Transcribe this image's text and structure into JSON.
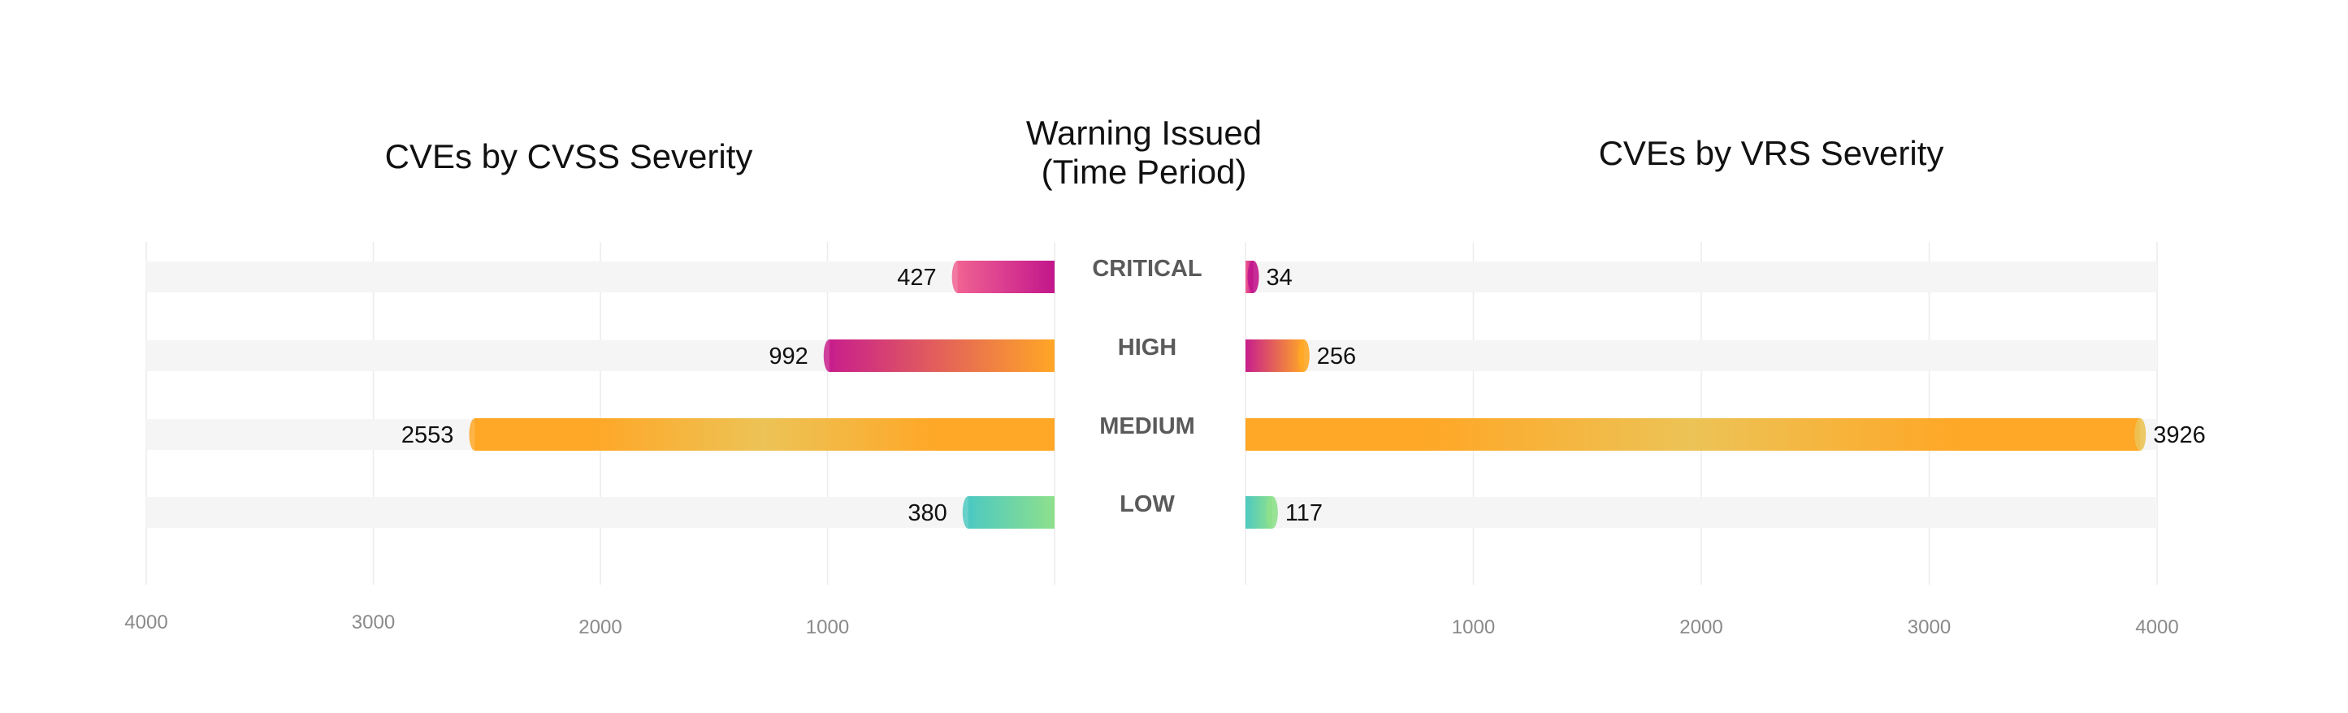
{
  "chart_data": {
    "type": "bar",
    "orientation": "horizontal-butterfly",
    "categories": [
      "CRITICAL",
      "HIGH",
      "MEDIUM",
      "LOW"
    ],
    "center_title": [
      "Warning Issued",
      "(Time Period)"
    ],
    "left": {
      "title": "CVEs by CVSS Severity",
      "values": [
        427,
        992,
        2553,
        380
      ],
      "xlim": [
        0,
        4000
      ],
      "ticks": [
        {
          "value": 1000,
          "label": "1000"
        },
        {
          "value": 2000,
          "label": "2000"
        },
        {
          "value": 3000,
          "label": "3000"
        },
        {
          "value": 4000,
          "label": "4000"
        }
      ]
    },
    "right": {
      "title": "CVEs by VRS Severity",
      "values": [
        34,
        256,
        3926,
        117
      ],
      "xlim": [
        0,
        4000
      ],
      "ticks": [
        {
          "value": 1000,
          "label": "1000"
        },
        {
          "value": 2000,
          "label": "2000"
        },
        {
          "value": 3000,
          "label": "3000"
        },
        {
          "value": 4000,
          "label": "4000"
        }
      ]
    },
    "grid": true,
    "colors": {
      "CRITICAL": [
        "#f06292",
        "#c2168c"
      ],
      "HIGH": [
        "#c81e8c",
        "#ffa726"
      ],
      "MEDIUM": [
        "#ffa726",
        "#ecc356"
      ],
      "LOW": [
        "#4ec9c1",
        "#8ee08c"
      ],
      "track": "#f5f5f5",
      "grid": "#ececec"
    }
  }
}
